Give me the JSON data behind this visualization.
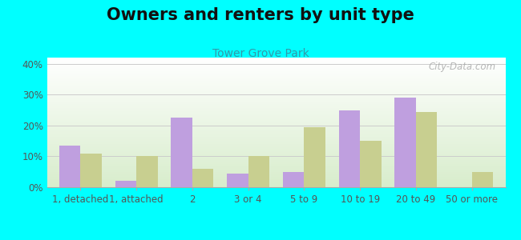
{
  "title": "Owners and renters by unit type",
  "subtitle": "Tower Grove Park",
  "categories": [
    "1, detached",
    "1, attached",
    "2",
    "3 or 4",
    "5 to 9",
    "10 to 19",
    "20 to 49",
    "50 or more"
  ],
  "owner_values": [
    13.5,
    2.0,
    22.5,
    4.5,
    5.0,
    25.0,
    29.0,
    0.0
  ],
  "renter_values": [
    11.0,
    10.0,
    6.0,
    10.0,
    19.5,
    15.0,
    24.5,
    5.0
  ],
  "owner_color": "#bf9fdf",
  "renter_color": "#c8cf90",
  "background_color": "#00ffff",
  "ylim": [
    0,
    42
  ],
  "yticks": [
    0,
    10,
    20,
    30,
    40
  ],
  "bar_width": 0.38,
  "title_fontsize": 15,
  "subtitle_fontsize": 10,
  "legend_fontsize": 10,
  "tick_fontsize": 8.5,
  "subtitle_color": "#3399aa",
  "title_color": "#111111",
  "axis_color": "#555555",
  "grid_color": "#cccccc",
  "watermark_text": "City-Data.com",
  "watermark_color": "#aaaaaa"
}
